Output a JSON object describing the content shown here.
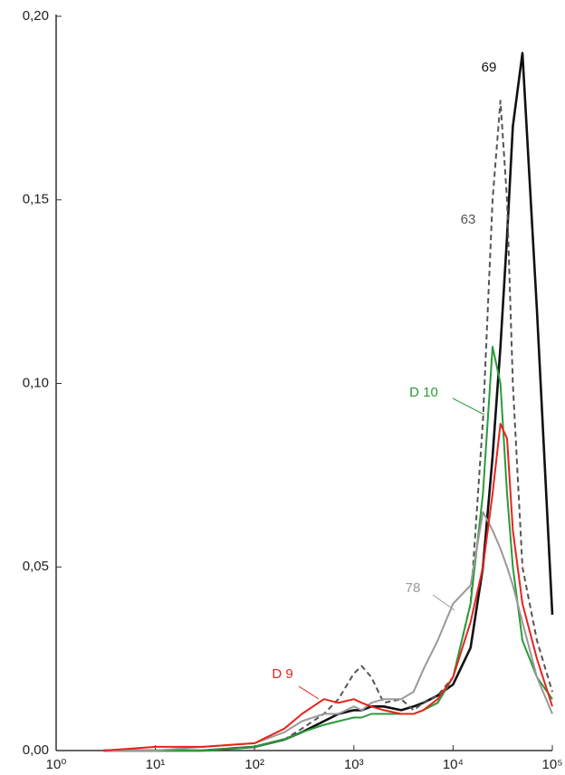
{
  "chart_data": {
    "type": "line",
    "xscale": "log",
    "x": [
      3,
      10,
      30,
      100,
      200,
      300,
      500,
      700,
      1000,
      1200,
      1500,
      2000,
      3000,
      4000,
      5000,
      7000,
      10000,
      15000,
      20000,
      25000,
      30000,
      35000,
      40000,
      50000,
      70000,
      100000
    ],
    "series": [
      {
        "name": "69",
        "color": "#111111",
        "dash": false,
        "values": [
          0,
          0,
          0,
          0.001,
          0.003,
          0.005,
          0.008,
          0.01,
          0.011,
          0.011,
          0.012,
          0.012,
          0.011,
          0.012,
          0.013,
          0.015,
          0.018,
          0.028,
          0.05,
          0.08,
          0.11,
          0.14,
          0.17,
          0.19,
          0.12,
          0.037
        ]
      },
      {
        "name": "63",
        "color": "#555555",
        "dash": true,
        "values": [
          0,
          0,
          0,
          0.001,
          0.003,
          0.006,
          0.01,
          0.014,
          0.021,
          0.023,
          0.02,
          0.013,
          0.014,
          0.011,
          0.013,
          0.015,
          0.02,
          0.04,
          0.09,
          0.15,
          0.177,
          0.15,
          0.1,
          0.05,
          0.03,
          0.016
        ]
      },
      {
        "name": "D 10",
        "color": "#2a9a3a",
        "dash": false,
        "values": [
          0,
          0,
          0,
          0.001,
          0.003,
          0.005,
          0.007,
          0.008,
          0.009,
          0.009,
          0.01,
          0.01,
          0.01,
          0.01,
          0.011,
          0.013,
          0.02,
          0.04,
          0.07,
          0.11,
          0.1,
          0.07,
          0.05,
          0.03,
          0.02,
          0.014
        ]
      },
      {
        "name": "78",
        "color": "#999999",
        "dash": false,
        "values": [
          0,
          0,
          0.001,
          0.002,
          0.005,
          0.008,
          0.01,
          0.01,
          0.012,
          0.011,
          0.013,
          0.014,
          0.014,
          0.016,
          0.022,
          0.03,
          0.04,
          0.045,
          0.065,
          0.06,
          0.055,
          0.05,
          0.045,
          0.035,
          0.02,
          0.01
        ]
      },
      {
        "name": "D 9",
        "color": "#e8231e",
        "dash": false,
        "values": [
          0,
          0.001,
          0.001,
          0.002,
          0.006,
          0.01,
          0.014,
          0.013,
          0.014,
          0.013,
          0.012,
          0.011,
          0.01,
          0.01,
          0.011,
          0.014,
          0.02,
          0.035,
          0.05,
          0.07,
          0.089,
          0.085,
          0.06,
          0.04,
          0.025,
          0.012
        ]
      }
    ],
    "xlim": [
      1,
      100000
    ],
    "xticks": [
      {
        "value": 1,
        "label": "10⁰"
      },
      {
        "value": 10,
        "label": "10¹"
      },
      {
        "value": 100,
        "label": "10²"
      },
      {
        "value": 1000,
        "label": "10³"
      },
      {
        "value": 10000,
        "label": "10⁴"
      },
      {
        "value": 100000,
        "label": "10⁵"
      }
    ],
    "ylim": [
      0,
      0.2
    ],
    "yticks": [
      {
        "value": 0,
        "label": "0,00"
      },
      {
        "value": 0.05,
        "label": "0,05"
      },
      {
        "value": 0.1,
        "label": "0,10"
      },
      {
        "value": 0.15,
        "label": "0,15"
      },
      {
        "value": 0.2,
        "label": "0,20"
      }
    ],
    "grid": false,
    "legend": "inline"
  }
}
